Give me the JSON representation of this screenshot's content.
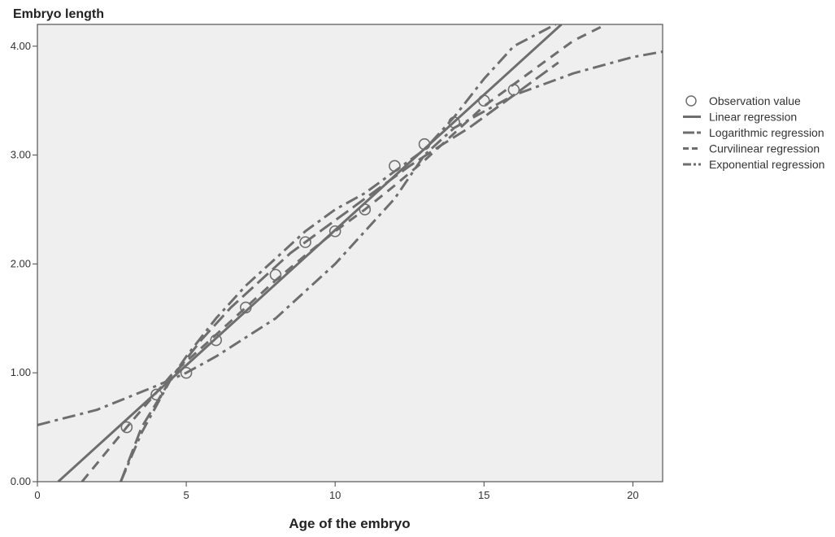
{
  "chart_data": {
    "type": "scatter",
    "title": "",
    "xlabel": "Age of the embryo",
    "ylabel": "Embryo length",
    "xlim": [
      0,
      21
    ],
    "ylim": [
      0,
      4.2
    ],
    "x_ticks": [
      0,
      5,
      10,
      15,
      20
    ],
    "x_tick_labels": [
      "0",
      "5",
      "10",
      "15",
      "20"
    ],
    "y_ticks": [
      0,
      1,
      2,
      3,
      4
    ],
    "y_tick_labels": [
      "0.00",
      "1.00",
      "2.00",
      "3.00",
      "4.00"
    ],
    "grid": false,
    "legend_position": "right",
    "background_color": "#efefef",
    "series_color": "#6e6e6e",
    "observations": {
      "name": "Observation value",
      "x": [
        3,
        4,
        5,
        6,
        7,
        8,
        9,
        10,
        11,
        12,
        13,
        14,
        15,
        16
      ],
      "y": [
        0.5,
        0.8,
        1.0,
        1.3,
        1.6,
        1.9,
        2.2,
        2.3,
        2.5,
        2.9,
        3.1,
        3.3,
        3.5,
        3.6
      ]
    },
    "series": [
      {
        "name": "Linear regression",
        "style": "solid",
        "x": [
          0.7,
          17.6
        ],
        "y": [
          0.0,
          4.2
        ]
      },
      {
        "name": "Logarithmic regression",
        "style": "long-dash",
        "x": [
          2.8,
          3.5,
          4.5,
          5.5,
          6.5,
          7.5,
          8.5,
          9.5,
          10.5,
          11.5,
          12.5,
          13.5,
          14.5,
          15.5,
          17.5
        ],
        "y": [
          0.0,
          0.5,
          0.95,
          1.3,
          1.6,
          1.85,
          2.1,
          2.3,
          2.5,
          2.7,
          2.9,
          3.08,
          3.25,
          3.45,
          3.85
        ]
      },
      {
        "name": "Curvilinear regression",
        "style": "dash",
        "x": [
          1.5,
          3,
          4.5,
          6,
          7,
          8,
          9,
          10,
          11,
          12,
          13,
          14,
          15,
          16,
          17,
          18,
          19.1
        ],
        "y": [
          0.0,
          0.5,
          0.98,
          1.35,
          1.6,
          1.85,
          2.08,
          2.3,
          2.5,
          2.72,
          2.95,
          3.2,
          3.45,
          3.65,
          3.85,
          4.05,
          4.2
        ]
      },
      {
        "name": "Exponential regression",
        "style": "dash-dot",
        "x": [
          0,
          2,
          4,
          5,
          6,
          8,
          10,
          12,
          13,
          14,
          16,
          18,
          20,
          21
        ],
        "y": [
          0.52,
          0.66,
          0.88,
          1.0,
          1.15,
          1.5,
          2.0,
          2.6,
          3.0,
          3.25,
          3.55,
          3.75,
          3.9,
          3.95
        ]
      },
      {
        "name": "",
        "style": "dash-dot",
        "x": [
          2.8,
          3.5,
          4.5,
          5,
          6,
          7,
          8,
          9,
          10,
          11,
          12,
          13,
          14,
          15,
          16,
          17.4
        ],
        "y": [
          0.0,
          0.45,
          0.95,
          1.15,
          1.5,
          1.8,
          2.05,
          2.3,
          2.5,
          2.65,
          2.85,
          3.05,
          3.35,
          3.7,
          4.0,
          4.2
        ]
      }
    ]
  }
}
